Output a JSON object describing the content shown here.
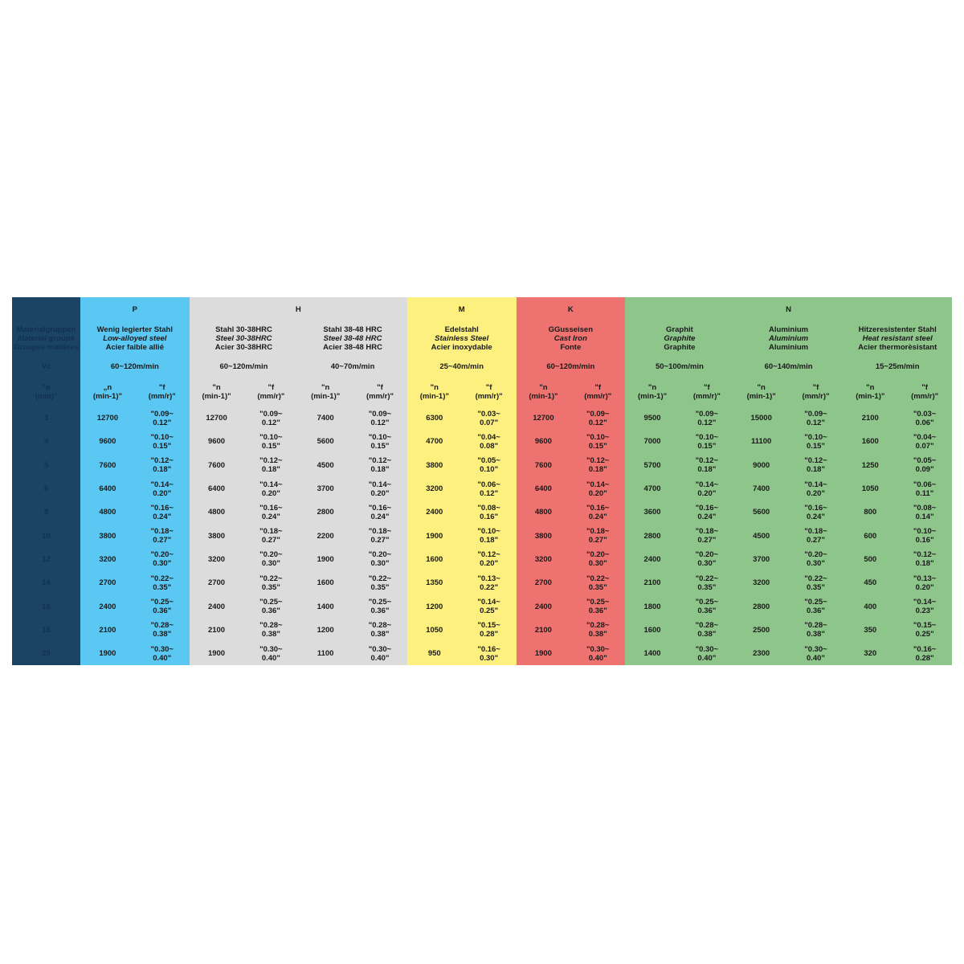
{
  "left_column": {
    "header_lines": [
      "Materialgruppen",
      "Material groups",
      "Groupes matières"
    ],
    "vc_label": "Vc",
    "diameter_label": "\"ø\n(mm)\"",
    "diameters": [
      "3",
      "4",
      "5",
      "6",
      "8",
      "10",
      "12",
      "14",
      "16",
      "18",
      "20"
    ]
  },
  "groups": [
    {
      "letter": "P",
      "color": "#5bc8f3",
      "span": 1
    },
    {
      "letter": "H",
      "color": "#dcdcdc",
      "span": 2
    },
    {
      "letter": "M",
      "color": "#fdf07f",
      "span": 1
    },
    {
      "letter": "K",
      "color": "#ee7270",
      "span": 1
    },
    {
      "letter": "N",
      "color": "#8ec58b",
      "span": 3
    }
  ],
  "materials": [
    {
      "group": 0,
      "name_de": "Wenig legierter Stahl",
      "name_en": "Low-alloyed steel",
      "name_fr": "Acier faible allié",
      "vc": "60~120m/min",
      "n_label": "„n\n(min-1)\"",
      "f_label": "\"f\n(mm/r)\"",
      "n": [
        "12700",
        "9600",
        "7600",
        "6400",
        "4800",
        "3800",
        "3200",
        "2700",
        "2400",
        "2100",
        "1900"
      ],
      "f": [
        "\"0.09~\n0.12\"",
        "\"0.10~\n0.15\"",
        "\"0.12~\n0.18\"",
        "\"0.14~\n0.20\"",
        "\"0.16~\n0.24\"",
        "\"0.18~\n0.27\"",
        "\"0.20~\n0.30\"",
        "\"0.22~\n0.35\"",
        "\"0.25~\n0.36\"",
        "\"0.28~\n0.38\"",
        "\"0.30~\n0.40\""
      ]
    },
    {
      "group": 1,
      "name_de": "Stahl 30-38HRC",
      "name_en": "Steel 30-38HRC",
      "name_fr": "Acier 30-38HRC",
      "vc": "60~120m/min",
      "n_label": "\"n\n(min-1)\"",
      "f_label": "\"f\n(mm/r)\"",
      "n": [
        "12700",
        "9600",
        "7600",
        "6400",
        "4800",
        "3800",
        "3200",
        "2700",
        "2400",
        "2100",
        "1900"
      ],
      "f": [
        "\"0.09~\n0.12\"",
        "\"0.10~\n0.15\"",
        "\"0.12~\n0.18\"",
        "\"0.14~\n0.20\"",
        "\"0.16~\n0.24\"",
        "\"0.18~\n0.27\"",
        "\"0.20~\n0.30\"",
        "\"0.22~\n0.35\"",
        "\"0.25~\n0.36\"",
        "\"0.28~\n0.38\"",
        "\"0.30~\n0.40\""
      ]
    },
    {
      "group": 1,
      "name_de": "Stahl 38-48 HRC",
      "name_en": "Steel 38-48 HRC",
      "name_fr": "Acier 38-48 HRC",
      "vc": "40~70m/min",
      "n_label": "\"n\n(min-1)\"",
      "f_label": "\"f\n(mm/r)\"",
      "n": [
        "7400",
        "5600",
        "4500",
        "3700",
        "2800",
        "2200",
        "1900",
        "1600",
        "1400",
        "1200",
        "1100"
      ],
      "f": [
        "\"0.09~\n0.12\"",
        "\"0.10~\n0.15\"",
        "\"0.12~\n0.18\"",
        "\"0.14~\n0.20\"",
        "\"0.16~\n0.24\"",
        "\"0.18~\n0.27\"",
        "\"0.20~\n0.30\"",
        "\"0.22~\n0.35\"",
        "\"0.25~\n0.36\"",
        "\"0.28~\n0.38\"",
        "\"0.30~\n0.40\""
      ]
    },
    {
      "group": 2,
      "name_de": "Edelstahl",
      "name_en": "Stainless Steel",
      "name_fr": "Acier inoxydable",
      "vc": "25~40m/min",
      "n_label": "\"n\n(min-1)\"",
      "f_label": "\"f\n(mm/r)\"",
      "n": [
        "6300",
        "4700",
        "3800",
        "3200",
        "2400",
        "1900",
        "1600",
        "1350",
        "1200",
        "1050",
        "950"
      ],
      "f": [
        "\"0.03~\n0.07\"",
        "\"0.04~\n0.08\"",
        "\"0.05~\n0.10\"",
        "\"0.06~\n0.12\"",
        "\"0.08~\n0.16\"",
        "\"0.10~\n0.18\"",
        "\"0.12~\n0.20\"",
        "\"0.13~\n0.22\"",
        "\"0.14~\n0.25\"",
        "\"0.15~\n0.28\"",
        "\"0.16~\n0.30\""
      ]
    },
    {
      "group": 3,
      "name_de": "GGusseisen",
      "name_en": "Cast Iron",
      "name_fr": "Fonte",
      "vc": "60~120m/min",
      "n_label": "\"n\n(min-1)\"",
      "f_label": "\"f\n(mm/r)\"",
      "n": [
        "12700",
        "9600",
        "7600",
        "6400",
        "4800",
        "3800",
        "3200",
        "2700",
        "2400",
        "2100",
        "1900"
      ],
      "f": [
        "\"0.09~\n0.12\"",
        "\"0.10~\n0.15\"",
        "\"0.12~\n0.18\"",
        "\"0.14~\n0.20\"",
        "\"0.16~\n0.24\"",
        "\"0.18~\n0.27\"",
        "\"0.20~\n0.30\"",
        "\"0.22~\n0.35\"",
        "\"0.25~\n0.36\"",
        "\"0.28~\n0.38\"",
        "\"0.30~\n0.40\""
      ]
    },
    {
      "group": 4,
      "name_de": "Graphit",
      "name_en": "Graphite",
      "name_fr": "Graphite",
      "vc": "50~100m/min",
      "n_label": "\"n\n(min-1)\"",
      "f_label": "\"f\n(mm/r)\"",
      "n": [
        "9500",
        "7000",
        "5700",
        "4700",
        "3600",
        "2800",
        "2400",
        "2100",
        "1800",
        "1600",
        "1400"
      ],
      "f": [
        "\"0.09~\n0.12\"",
        "\"0.10~\n0.15\"",
        "\"0.12~\n0.18\"",
        "\"0.14~\n0.20\"",
        "\"0.16~\n0.24\"",
        "\"0.18~\n0.27\"",
        "\"0.20~\n0.30\"",
        "\"0.22~\n0.35\"",
        "\"0.25~\n0.36\"",
        "\"0.28~\n0.38\"",
        "\"0.30~\n0.40\""
      ]
    },
    {
      "group": 4,
      "name_de": "Aluminium",
      "name_en": "Aluminium",
      "name_fr": "Aluminium",
      "vc": "60~140m/min",
      "n_label": "\"n\n(min-1)\"",
      "f_label": "\"f\n(mm/r)\"",
      "n": [
        "15000",
        "11100",
        "9000",
        "7400",
        "5600",
        "4500",
        "3700",
        "3200",
        "2800",
        "2500",
        "2300"
      ],
      "f": [
        "\"0.09~\n0.12\"",
        "\"0.10~\n0.15\"",
        "\"0.12~\n0.18\"",
        "\"0.14~\n0.20\"",
        "\"0.16~\n0.24\"",
        "\"0.18~\n0.27\"",
        "\"0.20~\n0.30\"",
        "\"0.22~\n0.35\"",
        "\"0.25~\n0.36\"",
        "\"0.28~\n0.38\"",
        "\"0.30~\n0.40\""
      ]
    },
    {
      "group": 4,
      "name_de": "Hitzeresistenter Stahl",
      "name_en": "Heat resistant steel",
      "name_fr": "Acier thermorèsistant",
      "vc": "15~25m/min",
      "n_label": "\"n\n(min-1)\"",
      "f_label": "\"f\n(mm/r)\"",
      "n": [
        "2100",
        "1600",
        "1250",
        "1050",
        "800",
        "600",
        "500",
        "450",
        "400",
        "350",
        "320"
      ],
      "f": [
        "\"0.03~\n0.06\"",
        "\"0.04~\n0.07\"",
        "\"0.05~\n0.09\"",
        "\"0.06~\n0.11\"",
        "\"0.08~\n0.14\"",
        "\"0.10~\n0.16\"",
        "\"0.12~\n0.18\"",
        "\"0.13~\n0.20\"",
        "\"0.14~\n0.23\"",
        "\"0.15~\n0.25\"",
        "\"0.16~\n0.28\""
      ]
    }
  ]
}
